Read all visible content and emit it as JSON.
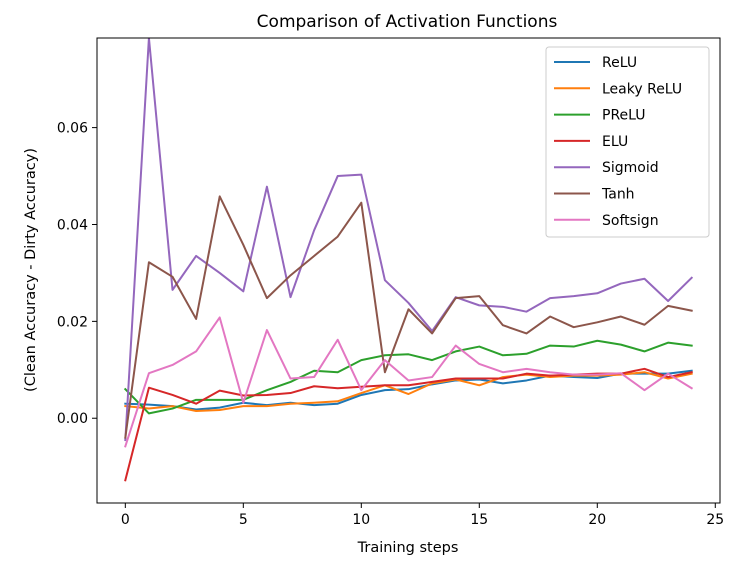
{
  "chart_data": {
    "type": "line",
    "title": "Comparison of Activation Functions",
    "xlabel": "Training steps",
    "ylabel": "(Clean Accuracy - Dirty Accuracy)",
    "xlim": [
      -1.2,
      25.2
    ],
    "ylim": [
      -0.0175,
      0.0785
    ],
    "xticks": [
      0,
      5,
      10,
      15,
      20,
      25
    ],
    "yticks": [
      0.0,
      0.02,
      0.04,
      0.06
    ],
    "ytick_labels": [
      "0.00",
      "0.02",
      "0.04",
      "0.06"
    ],
    "legend_position": "top-right",
    "x": [
      0,
      1,
      2,
      3,
      4,
      5,
      6,
      7,
      8,
      9,
      10,
      11,
      12,
      13,
      14,
      15,
      16,
      17,
      18,
      19,
      20,
      21,
      22,
      23,
      24
    ],
    "series": [
      {
        "name": "ReLU",
        "color": "#1f77b4",
        "values": [
          0.003,
          0.0028,
          0.0025,
          0.0018,
          0.0022,
          0.0032,
          0.0027,
          0.0032,
          0.0027,
          0.003,
          0.0048,
          0.0058,
          0.006,
          0.007,
          0.0078,
          0.008,
          0.0072,
          0.0078,
          0.0088,
          0.0085,
          0.0083,
          0.0092,
          0.0092,
          0.0092,
          0.0098
        ]
      },
      {
        "name": "Leaky ReLU",
        "color": "#ff7f0e",
        "values": [
          0.0025,
          0.002,
          0.0025,
          0.0015,
          0.0017,
          0.0025,
          0.0025,
          0.003,
          0.0032,
          0.0035,
          0.0052,
          0.0068,
          0.005,
          0.0072,
          0.008,
          0.0068,
          0.0085,
          0.009,
          0.0085,
          0.0088,
          0.0088,
          0.009,
          0.0095,
          0.0082,
          0.0092
        ]
      },
      {
        "name": "PReLU",
        "color": "#2ca02c",
        "values": [
          0.006,
          0.001,
          0.002,
          0.0038,
          0.0038,
          0.0038,
          0.0058,
          0.0075,
          0.0098,
          0.0095,
          0.012,
          0.013,
          0.0132,
          0.012,
          0.0138,
          0.0148,
          0.013,
          0.0133,
          0.015,
          0.0148,
          0.016,
          0.0152,
          0.0138,
          0.0156,
          0.015
        ]
      },
      {
        "name": "ELU",
        "color": "#d62728",
        "values": [
          -0.0128,
          0.0063,
          0.0048,
          0.003,
          0.0057,
          0.0047,
          0.0048,
          0.0052,
          0.0066,
          0.0062,
          0.0065,
          0.0068,
          0.0068,
          0.0075,
          0.0082,
          0.0082,
          0.0082,
          0.0092,
          0.0088,
          0.009,
          0.0092,
          0.0092,
          0.0102,
          0.0085,
          0.0095
        ]
      },
      {
        "name": "Sigmoid",
        "color": "#9467bd",
        "values": [
          -0.0045,
          0.0785,
          0.0265,
          0.0335,
          0.03,
          0.0262,
          0.0478,
          0.025,
          0.0388,
          0.05,
          0.0503,
          0.0285,
          0.0238,
          0.018,
          0.025,
          0.0233,
          0.023,
          0.022,
          0.0248,
          0.0252,
          0.0258,
          0.0278,
          0.0288,
          0.0242,
          0.029
        ]
      },
      {
        "name": "Tanh",
        "color": "#8c564b",
        "values": [
          -0.004,
          0.0322,
          0.0292,
          0.0205,
          0.0458,
          0.0358,
          0.0248,
          0.0295,
          0.0335,
          0.0375,
          0.0445,
          0.0095,
          0.0225,
          0.0175,
          0.0248,
          0.0252,
          0.0192,
          0.0175,
          0.021,
          0.0188,
          0.0198,
          0.021,
          0.0193,
          0.0232,
          0.0222
        ]
      },
      {
        "name": "Softsign",
        "color": "#e377c2",
        "values": [
          -0.0058,
          0.0093,
          0.011,
          0.0138,
          0.0208,
          0.0032,
          0.0182,
          0.0082,
          0.0085,
          0.0162,
          0.0058,
          0.012,
          0.0078,
          0.0085,
          0.015,
          0.0112,
          0.0095,
          0.0102,
          0.0095,
          0.009,
          0.009,
          0.0093,
          0.0058,
          0.0092,
          0.0062
        ]
      }
    ]
  }
}
